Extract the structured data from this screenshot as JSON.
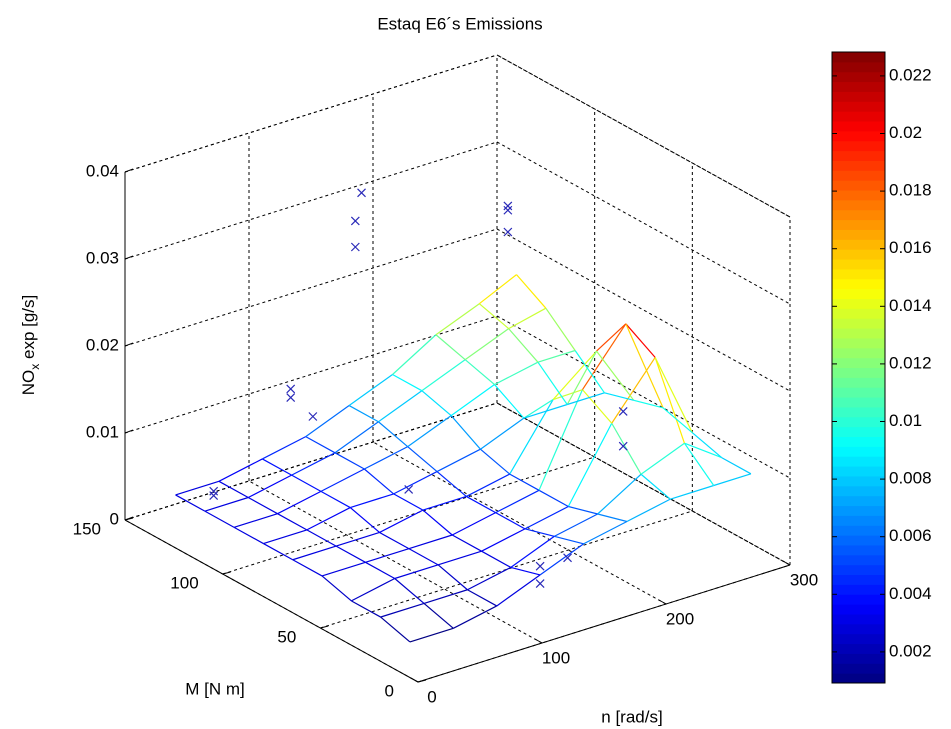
{
  "chart_data": {
    "type": "surface",
    "title": "Estaq E6´s Emissions",
    "xlabel": "n [rad/s]",
    "ylabel": "M [N m]",
    "zlabel": {
      "main": "NO",
      "sub": "x",
      "rest": " exp [g/s]"
    },
    "xlim": [
      0,
      300
    ],
    "xticks": [
      0,
      100,
      200,
      300
    ],
    "ylim": [
      0,
      150
    ],
    "yticks": [
      0,
      50,
      100,
      150
    ],
    "zlim": [
      0,
      0.04
    ],
    "zticks": [
      0,
      0.01,
      0.02,
      0.03,
      0.04
    ],
    "grid": true,
    "colormap": "jet",
    "clim": [
      0.00092,
      0.02283
    ],
    "colorbar_ticks": [
      0.002,
      0.004,
      0.006,
      0.008,
      0.01,
      0.012,
      0.014,
      0.016,
      0.018,
      0.02,
      0.022
    ],
    "surface": {
      "x": [
        25,
        60,
        95,
        130,
        165,
        200,
        235,
        270,
        300
      ],
      "y": [
        20,
        35,
        50,
        65,
        80,
        95,
        110,
        125,
        140
      ],
      "z": [
        [
          0.001,
          0.001,
          0.002,
          0.004,
          0.006,
          0.007,
          0.008,
          0.008,
          0.008
        ],
        [
          0.002,
          0.002,
          0.002,
          0.003,
          0.005,
          0.006,
          0.009,
          0.011,
          0.008
        ],
        [
          0.002,
          0.003,
          0.003,
          0.003,
          0.004,
          0.005,
          0.013,
          0.019,
          0.009
        ],
        [
          0.003,
          0.003,
          0.003,
          0.003,
          0.004,
          0.005,
          0.015,
          0.021,
          0.01
        ],
        [
          0.003,
          0.003,
          0.003,
          0.004,
          0.004,
          0.005,
          0.012,
          0.016,
          0.009
        ],
        [
          0.003,
          0.003,
          0.004,
          0.004,
          0.005,
          0.006,
          0.008,
          0.008,
          0.008
        ],
        [
          0.003,
          0.003,
          0.004,
          0.005,
          0.006,
          0.008,
          0.01,
          0.011,
          0.011
        ],
        [
          0.003,
          0.003,
          0.004,
          0.005,
          0.007,
          0.009,
          0.011,
          0.013,
          0.014
        ],
        [
          0.003,
          0.003,
          0.004,
          0.005,
          0.007,
          0.009,
          0.012,
          0.014,
          0.016
        ]
      ]
    },
    "points": {
      "color": "#2a2ab8",
      "x": [
        40,
        40,
        110,
        110,
        120,
        170,
        170,
        175,
        230,
        230,
        230,
        260,
        260,
        130,
        130,
        160,
        150
      ],
      "y": [
        130,
        130,
        135,
        135,
        130,
        140,
        140,
        140,
        100,
        100,
        100,
        60,
        60,
        20,
        20,
        25,
        100
      ],
      "z": [
        0.004,
        0.0035,
        0.012,
        0.011,
        0.009,
        0.025,
        0.028,
        0.031,
        0.032,
        0.029,
        0.0315,
        0.012,
        0.008,
        0.005,
        0.003,
        0.004,
        0.003
      ]
    }
  }
}
